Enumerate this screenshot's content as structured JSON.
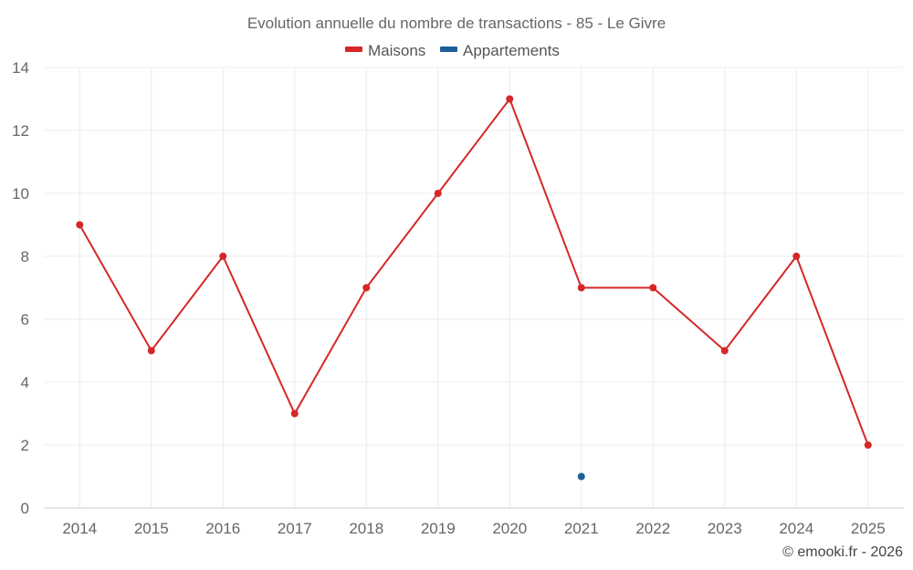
{
  "chart_data": {
    "type": "line",
    "title": "Evolution annuelle du nombre de transactions - 85 - Le Givre",
    "categories": [
      "2014",
      "2015",
      "2016",
      "2017",
      "2018",
      "2019",
      "2020",
      "2021",
      "2022",
      "2023",
      "2024",
      "2025"
    ],
    "series": [
      {
        "name": "Maisons",
        "color": "#d62728",
        "values": [
          9,
          5,
          8,
          3,
          7,
          10,
          13,
          7,
          7,
          5,
          8,
          2
        ]
      },
      {
        "name": "Appartements",
        "color": "#1f5f99",
        "values": [
          null,
          null,
          null,
          null,
          null,
          null,
          null,
          1,
          null,
          null,
          null,
          null
        ]
      }
    ],
    "ylim": [
      0,
      14
    ],
    "yticks": [
      0,
      2,
      4,
      6,
      8,
      10,
      12,
      14
    ],
    "ytick_labels": [
      "0",
      "2",
      "4",
      "6",
      "8",
      "10",
      "12",
      "14"
    ],
    "grid": true,
    "legend_position": "top-center"
  },
  "credit": "© emooki.fr - 2026"
}
